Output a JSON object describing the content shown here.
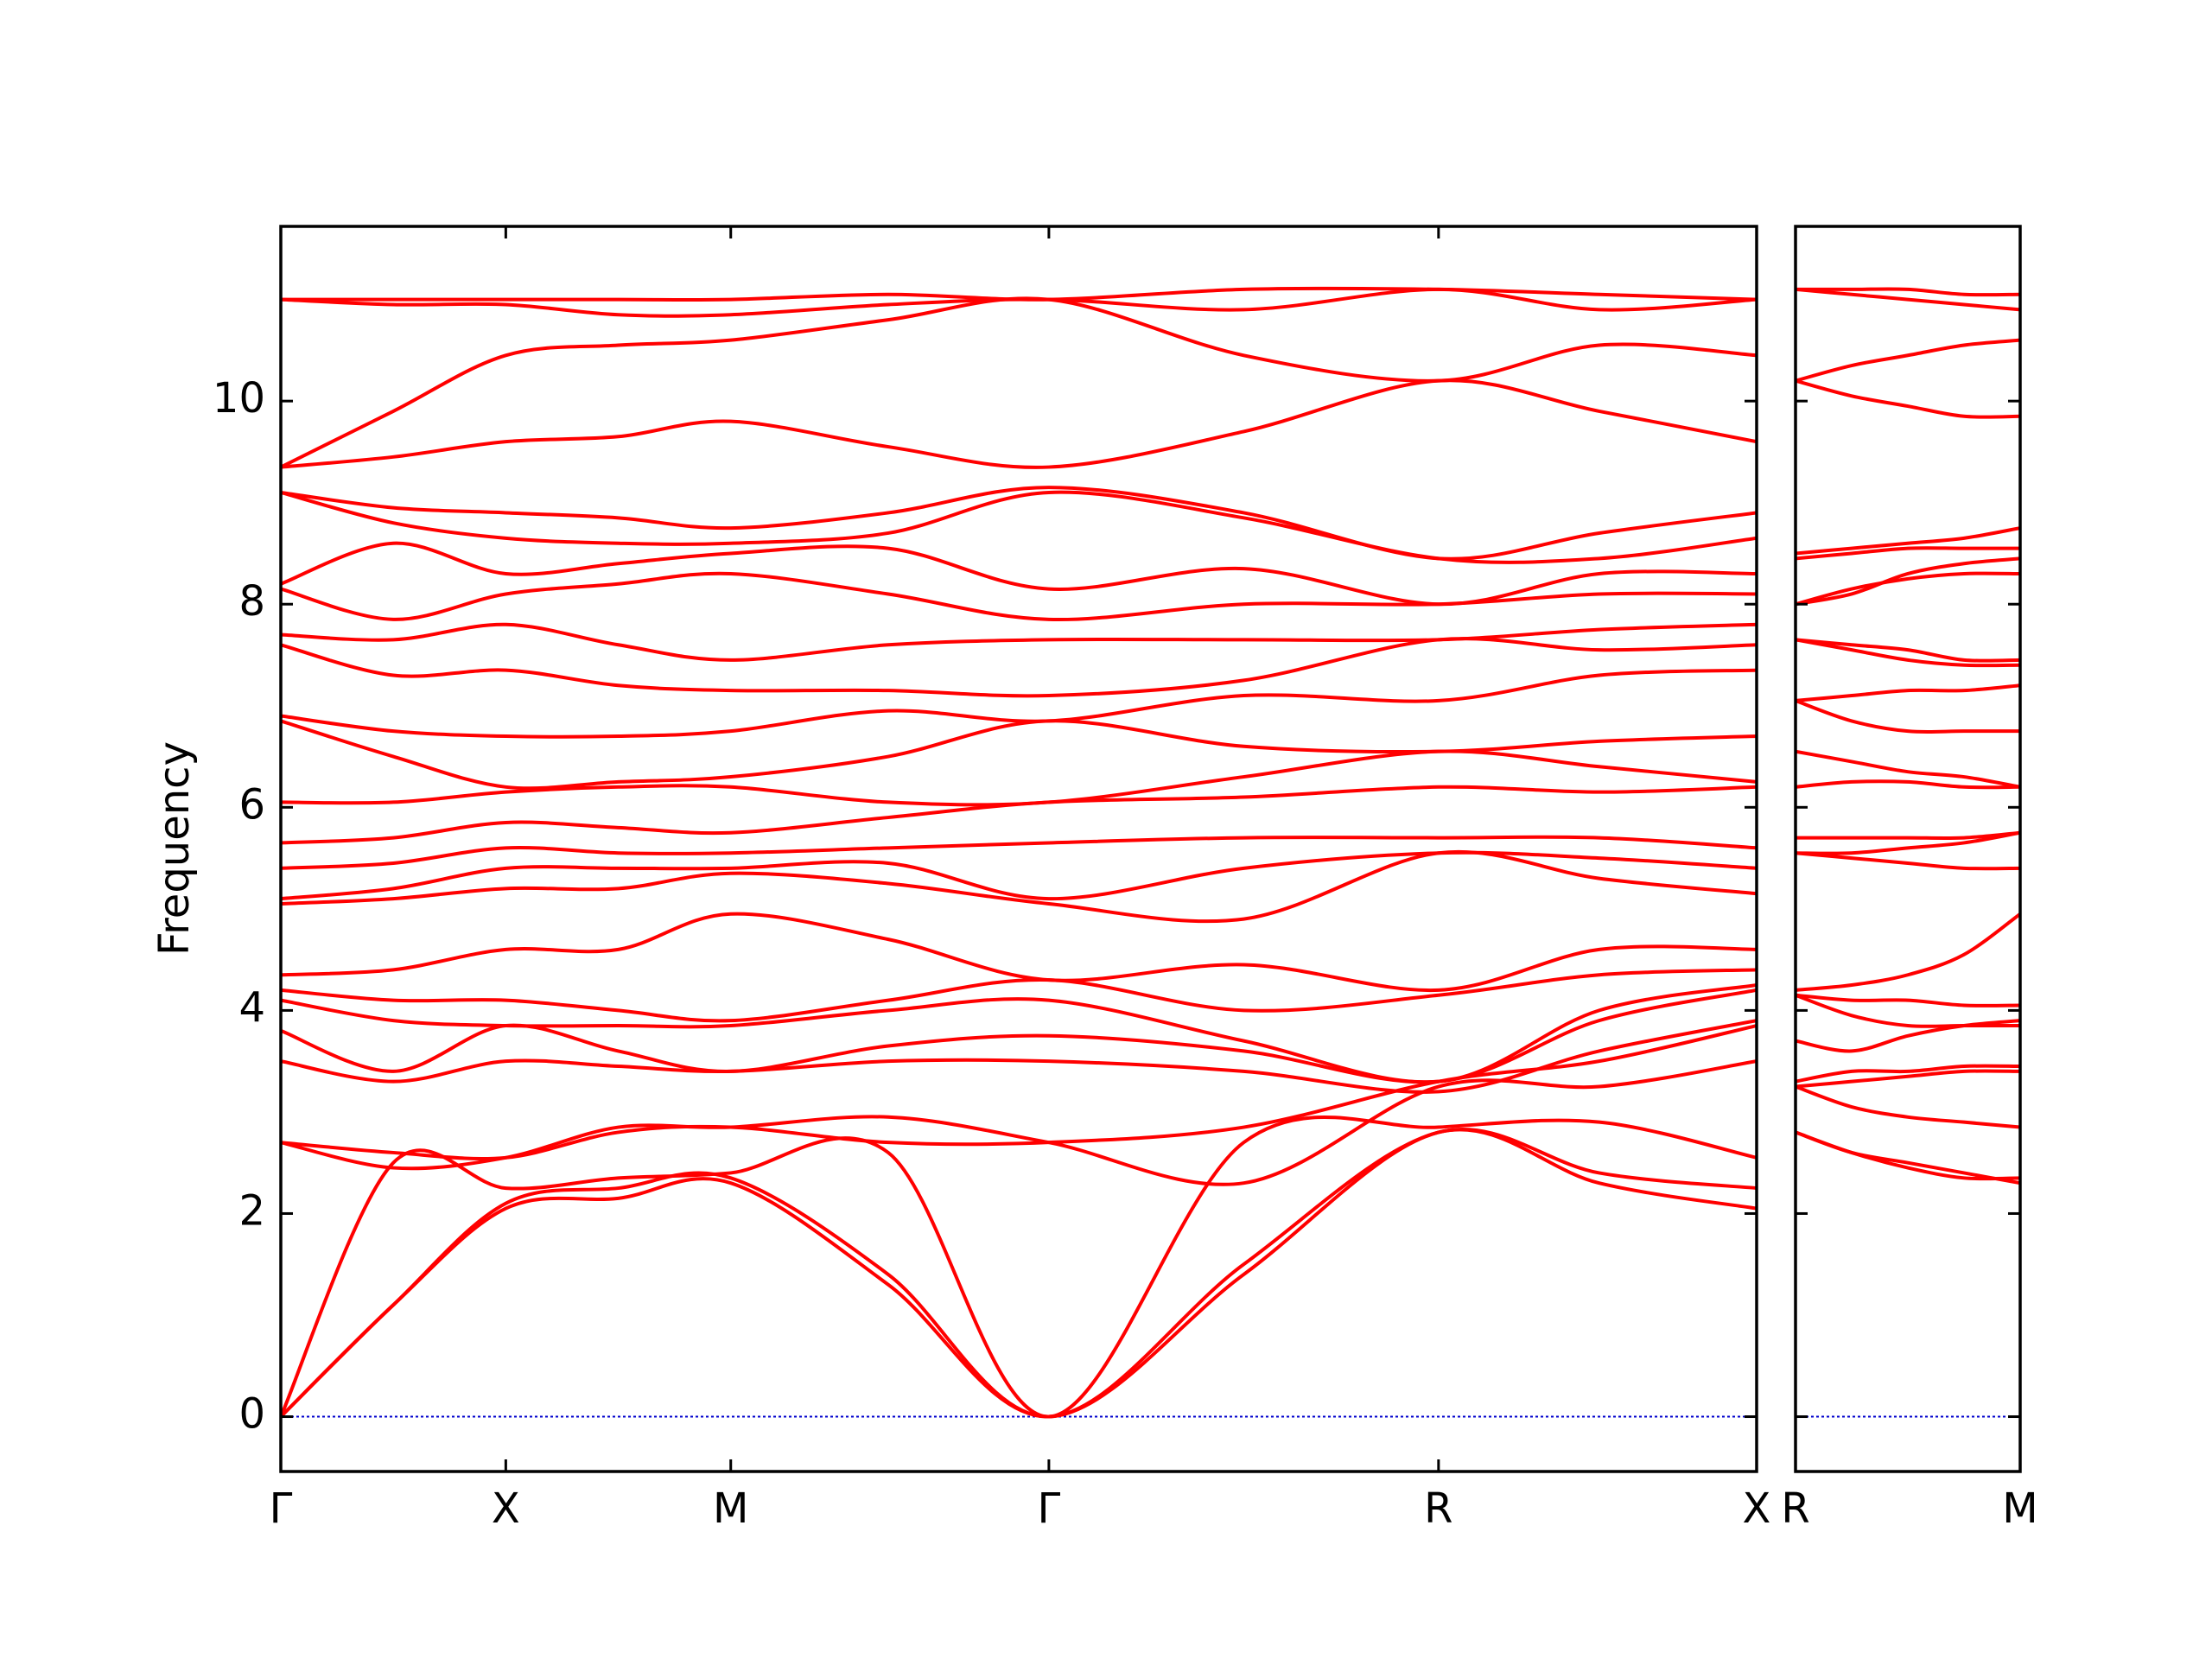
{
  "chart_data": [
    {
      "type": "line",
      "ylabel": "Frequency",
      "color": "#ff0000",
      "zero_line": true,
      "zero_line_color": "#0000cc",
      "xlim": [
        0,
        3.28
      ],
      "ylim": [
        -0.54,
        11.72
      ],
      "xticks": [
        {
          "value": 0,
          "label": "Γ"
        },
        {
          "value": 0.5,
          "label": "X"
        },
        {
          "value": 1.0,
          "label": "M"
        },
        {
          "value": 1.707,
          "label": "Γ"
        },
        {
          "value": 2.573,
          "label": "R"
        },
        {
          "value": 3.28,
          "label": "X"
        }
      ],
      "yticks": [
        0,
        2,
        4,
        6,
        8,
        10
      ],
      "x": [
        0,
        0.25,
        0.5,
        0.75,
        1.0,
        1.35,
        1.707,
        2.14,
        2.573,
        2.93,
        3.28
      ],
      "series": [
        {
          "values": [
            0,
            1.1,
            2.05,
            2.15,
            2.3,
            1.3,
            0,
            1.4,
            2.8,
            2.3,
            2.05
          ]
        },
        {
          "values": [
            0,
            1.1,
            2.1,
            2.25,
            2.35,
            1.4,
            0,
            1.5,
            2.8,
            2.4,
            2.25
          ]
        },
        {
          "values": [
            0,
            2.5,
            2.25,
            2.35,
            2.4,
            2.6,
            0,
            2.7,
            2.85,
            2.9,
            2.55
          ]
        },
        {
          "values": [
            2.7,
            2.45,
            2.55,
            2.85,
            2.85,
            2.95,
            2.7,
            2.3,
            3.25,
            3.25,
            3.5
          ]
        },
        {
          "values": [
            2.7,
            2.6,
            2.55,
            2.8,
            2.85,
            2.7,
            2.7,
            2.85,
            3.3,
            3.5,
            3.85
          ]
        },
        {
          "values": [
            3.5,
            3.3,
            3.5,
            3.45,
            3.4,
            3.5,
            3.5,
            3.4,
            3.2,
            3.6,
            3.9
          ]
        },
        {
          "values": [
            3.8,
            3.4,
            3.85,
            3.6,
            3.4,
            3.65,
            3.75,
            3.6,
            3.3,
            3.9,
            4.2
          ]
        },
        {
          "values": [
            4.1,
            3.9,
            3.85,
            3.85,
            3.85,
            4.0,
            4.1,
            3.7,
            3.3,
            4.0,
            4.25
          ]
        },
        {
          "values": [
            4.2,
            4.1,
            4.1,
            4.0,
            3.9,
            4.1,
            4.3,
            4.0,
            4.15,
            4.35,
            4.4
          ]
        },
        {
          "values": [
            4.35,
            4.4,
            4.6,
            4.6,
            4.95,
            4.7,
            4.3,
            4.45,
            4.2,
            4.6,
            4.6
          ]
        },
        {
          "values": [
            5.05,
            5.1,
            5.2,
            5.2,
            5.35,
            5.25,
            5.05,
            4.9,
            5.55,
            5.3,
            5.15
          ]
        },
        {
          "values": [
            5.1,
            5.2,
            5.4,
            5.4,
            5.4,
            5.45,
            5.1,
            5.4,
            5.55,
            5.5,
            5.4
          ]
        },
        {
          "values": [
            5.4,
            5.45,
            5.6,
            5.55,
            5.55,
            5.6,
            5.65,
            5.7,
            5.7,
            5.7,
            5.6
          ]
        },
        {
          "values": [
            5.65,
            5.7,
            5.85,
            5.8,
            5.75,
            5.9,
            6.05,
            6.1,
            6.2,
            6.15,
            6.2
          ]
        },
        {
          "values": [
            6.05,
            6.05,
            6.15,
            6.2,
            6.2,
            6.05,
            6.05,
            6.3,
            6.55,
            6.4,
            6.25
          ]
        },
        {
          "values": [
            6.85,
            6.5,
            6.2,
            6.25,
            6.3,
            6.5,
            6.85,
            6.6,
            6.55,
            6.65,
            6.7
          ]
        },
        {
          "values": [
            6.9,
            6.75,
            6.7,
            6.7,
            6.75,
            6.95,
            6.85,
            7.1,
            7.05,
            7.3,
            7.35
          ]
        },
        {
          "values": [
            7.6,
            7.3,
            7.35,
            7.2,
            7.15,
            7.15,
            7.1,
            7.25,
            7.65,
            7.55,
            7.6
          ]
        },
        {
          "values": [
            7.7,
            7.65,
            7.8,
            7.6,
            7.45,
            7.6,
            7.65,
            7.65,
            7.65,
            7.75,
            7.8
          ]
        },
        {
          "values": [
            8.15,
            7.85,
            8.1,
            8.2,
            8.3,
            8.1,
            7.85,
            8.0,
            8.0,
            8.1,
            8.1
          ]
        },
        {
          "values": [
            8.2,
            8.6,
            8.3,
            8.4,
            8.5,
            8.55,
            8.15,
            8.35,
            8.0,
            8.3,
            8.3
          ]
        },
        {
          "values": [
            9.1,
            8.8,
            8.65,
            8.6,
            8.6,
            8.7,
            9.1,
            8.85,
            8.45,
            8.45,
            8.65
          ]
        },
        {
          "values": [
            9.1,
            8.95,
            8.9,
            8.85,
            8.75,
            8.9,
            9.15,
            8.9,
            8.45,
            8.7,
            8.9
          ]
        },
        {
          "values": [
            9.35,
            9.45,
            9.6,
            9.65,
            9.8,
            9.55,
            9.35,
            9.7,
            10.2,
            9.9,
            9.6
          ]
        },
        {
          "values": [
            9.35,
            9.9,
            10.45,
            10.55,
            10.6,
            10.8,
            11.0,
            10.45,
            10.2,
            10.55,
            10.45
          ]
        },
        {
          "values": [
            11.0,
            10.95,
            10.95,
            10.85,
            10.85,
            10.95,
            11.0,
            10.9,
            11.1,
            10.9,
            11.0
          ]
        },
        {
          "values": [
            11.0,
            11.0,
            11.0,
            11.0,
            11.0,
            11.05,
            11.0,
            11.1,
            11.1,
            11.05,
            11.0
          ]
        }
      ]
    },
    {
      "type": "line",
      "color": "#ff0000",
      "zero_line": true,
      "zero_line_color": "#0000cc",
      "xlim": [
        0,
        0.5
      ],
      "ylim": [
        -0.54,
        11.72
      ],
      "xticks": [
        {
          "value": 0,
          "label": "R"
        },
        {
          "value": 0.5,
          "label": "M"
        }
      ],
      "yticks": [
        0,
        2,
        4,
        6,
        8,
        10
      ],
      "x": [
        0,
        0.125,
        0.25,
        0.375,
        0.5
      ],
      "series": [
        {
          "values": [
            2.8,
            2.6,
            2.45,
            2.35,
            2.35
          ]
        },
        {
          "values": [
            2.8,
            2.6,
            2.5,
            2.4,
            2.3
          ]
        },
        {
          "values": [
            3.25,
            3.05,
            2.95,
            2.9,
            2.85
          ]
        },
        {
          "values": [
            3.25,
            3.3,
            3.35,
            3.4,
            3.4
          ]
        },
        {
          "values": [
            3.3,
            3.4,
            3.4,
            3.45,
            3.45
          ]
        },
        {
          "values": [
            3.7,
            3.6,
            3.75,
            3.85,
            3.9
          ]
        },
        {
          "values": [
            4.15,
            3.95,
            3.85,
            3.85,
            3.85
          ]
        },
        {
          "values": [
            4.15,
            4.1,
            4.1,
            4.05,
            4.05
          ]
        },
        {
          "values": [
            4.2,
            4.25,
            4.35,
            4.55,
            4.95
          ]
        },
        {
          "values": [
            5.55,
            5.5,
            5.45,
            5.4,
            5.4
          ]
        },
        {
          "values": [
            5.55,
            5.55,
            5.6,
            5.65,
            5.75
          ]
        },
        {
          "values": [
            5.7,
            5.7,
            5.7,
            5.7,
            5.75
          ]
        },
        {
          "values": [
            6.2,
            6.25,
            6.25,
            6.2,
            6.2
          ]
        },
        {
          "values": [
            6.55,
            6.45,
            6.35,
            6.3,
            6.2
          ]
        },
        {
          "values": [
            7.05,
            7.1,
            7.15,
            7.15,
            7.2
          ]
        },
        {
          "values": [
            7.05,
            6.85,
            6.75,
            6.75,
            6.75
          ]
        },
        {
          "values": [
            7.65,
            7.55,
            7.45,
            7.4,
            7.4
          ]
        },
        {
          "values": [
            7.65,
            7.6,
            7.55,
            7.45,
            7.45
          ]
        },
        {
          "values": [
            8.0,
            8.15,
            8.25,
            8.3,
            8.3
          ]
        },
        {
          "values": [
            8.0,
            8.1,
            8.3,
            8.4,
            8.45
          ]
        },
        {
          "values": [
            8.45,
            8.5,
            8.55,
            8.55,
            8.55
          ]
        },
        {
          "values": [
            8.5,
            8.55,
            8.6,
            8.65,
            8.75
          ]
        },
        {
          "values": [
            10.2,
            10.35,
            10.45,
            10.55,
            10.6
          ]
        },
        {
          "values": [
            10.2,
            10.05,
            9.95,
            9.85,
            9.85
          ]
        },
        {
          "values": [
            11.1,
            11.05,
            11.0,
            10.95,
            10.9
          ]
        },
        {
          "values": [
            11.1,
            11.1,
            11.1,
            11.05,
            11.05
          ]
        }
      ]
    }
  ]
}
